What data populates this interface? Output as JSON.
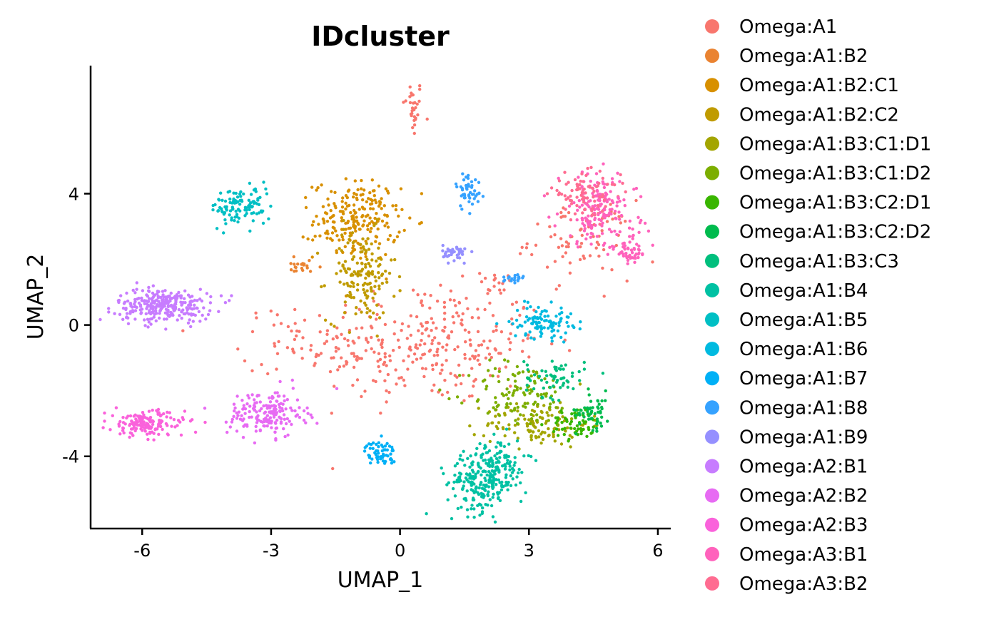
{
  "chart_data": {
    "type": "scatter",
    "title": "IDcluster",
    "xlabel": "UMAP_1",
    "ylabel": "UMAP_2",
    "xlim": [
      -7.2,
      6.3
    ],
    "ylim": [
      -6.2,
      7.9
    ],
    "x_ticks": [
      -6,
      -3,
      0,
      3,
      6
    ],
    "x_tick_labels": [
      "-6",
      "-3",
      "0",
      "3",
      "6"
    ],
    "y_ticks": [
      -4,
      0,
      4
    ],
    "y_tick_labels": [
      "-4",
      "0",
      "4"
    ],
    "grid": false,
    "legend_position": "right",
    "series": [
      {
        "name": "Omega:A1",
        "color": "#F8766D",
        "clusters": [
          {
            "cx": 0.3,
            "cy": 6.6,
            "sx": 0.12,
            "sy": 0.45,
            "n": 30
          },
          {
            "cx": 0.6,
            "cy": -0.6,
            "sx": 1.4,
            "sy": 0.9,
            "n": 300
          },
          {
            "cx": -2.3,
            "cy": -0.5,
            "sx": 0.7,
            "sy": 0.5,
            "n": 40
          },
          {
            "cx": 4.2,
            "cy": 2.6,
            "sx": 0.6,
            "sy": 0.6,
            "n": 80
          },
          {
            "cx": 2.3,
            "cy": 1.2,
            "sx": 0.25,
            "sy": 0.15,
            "n": 15
          }
        ]
      },
      {
        "name": "Omega:A1:B2",
        "color": "#EA8331",
        "clusters": [
          {
            "cx": -2.3,
            "cy": 1.8,
            "sx": 0.25,
            "sy": 0.15,
            "n": 20
          }
        ]
      },
      {
        "name": "Omega:A1:B2:C1",
        "color": "#D89000",
        "clusters": [
          {
            "cx": -1.0,
            "cy": 3.2,
            "sx": 0.5,
            "sy": 0.6,
            "n": 220
          }
        ]
      },
      {
        "name": "Omega:A1:B2:C2",
        "color": "#C09B00",
        "clusters": [
          {
            "cx": -0.9,
            "cy": 1.5,
            "sx": 0.4,
            "sy": 0.7,
            "n": 150
          }
        ]
      },
      {
        "name": "Omega:A1:B3:C1:D1",
        "color": "#A3A500",
        "clusters": [
          {
            "cx": 3.2,
            "cy": -3.0,
            "sx": 0.6,
            "sy": 0.35,
            "n": 120
          }
        ]
      },
      {
        "name": "Omega:A1:B3:C1:D2",
        "color": "#7CAE00",
        "clusters": [
          {
            "cx": 2.8,
            "cy": -2.1,
            "sx": 0.6,
            "sy": 0.5,
            "n": 110
          }
        ]
      },
      {
        "name": "Omega:A1:B3:C2:D1",
        "color": "#39B600",
        "clusters": [
          {
            "cx": 4.1,
            "cy": -3.0,
            "sx": 0.3,
            "sy": 0.25,
            "n": 60
          }
        ]
      },
      {
        "name": "Omega:A1:B3:C2:D2",
        "color": "#00BB4E",
        "clusters": [
          {
            "cx": 4.5,
            "cy": -2.6,
            "sx": 0.2,
            "sy": 0.3,
            "n": 50
          }
        ]
      },
      {
        "name": "Omega:A1:B3:C3",
        "color": "#00BF7D",
        "clusters": [
          {
            "cx": 3.6,
            "cy": -1.6,
            "sx": 0.35,
            "sy": 0.3,
            "n": 60
          }
        ]
      },
      {
        "name": "Omega:A1:B4",
        "color": "#00C1A3",
        "clusters": [
          {
            "cx": 1.9,
            "cy": -4.8,
            "sx": 0.4,
            "sy": 0.45,
            "n": 200
          },
          {
            "cx": 2.3,
            "cy": -4.1,
            "sx": 0.3,
            "sy": 0.35,
            "n": 80
          }
        ]
      },
      {
        "name": "Omega:A1:B5",
        "color": "#00BFC4",
        "clusters": [
          {
            "cx": -3.7,
            "cy": 3.6,
            "sx": 0.35,
            "sy": 0.3,
            "n": 110
          }
        ]
      },
      {
        "name": "Omega:A1:B6",
        "color": "#00BAE0",
        "clusters": [
          {
            "cx": 3.3,
            "cy": 0.1,
            "sx": 0.35,
            "sy": 0.25,
            "n": 100
          }
        ]
      },
      {
        "name": "Omega:A1:B7",
        "color": "#00B0F6",
        "clusters": [
          {
            "cx": -0.45,
            "cy": -3.9,
            "sx": 0.18,
            "sy": 0.18,
            "n": 60
          }
        ]
      },
      {
        "name": "Omega:A1:B8",
        "color": "#35A2FF",
        "clusters": [
          {
            "cx": 1.6,
            "cy": 4.1,
            "sx": 0.15,
            "sy": 0.3,
            "n": 45
          },
          {
            "cx": 2.6,
            "cy": 1.4,
            "sx": 0.15,
            "sy": 0.1,
            "n": 20
          }
        ]
      },
      {
        "name": "Omega:A1:B9",
        "color": "#9590FF",
        "clusters": [
          {
            "cx": 1.3,
            "cy": 2.2,
            "sx": 0.15,
            "sy": 0.12,
            "n": 40
          }
        ]
      },
      {
        "name": "Omega:A2:B1",
        "color": "#C77CFF",
        "clusters": [
          {
            "cx": -5.5,
            "cy": 0.6,
            "sx": 0.55,
            "sy": 0.25,
            "n": 280
          }
        ]
      },
      {
        "name": "Omega:A2:B2",
        "color": "#E76BF3",
        "clusters": [
          {
            "cx": -3.1,
            "cy": -2.7,
            "sx": 0.45,
            "sy": 0.35,
            "n": 180
          }
        ]
      },
      {
        "name": "Omega:A2:B3",
        "color": "#FA62DB",
        "clusters": [
          {
            "cx": -5.9,
            "cy": -3.0,
            "sx": 0.45,
            "sy": 0.2,
            "n": 160
          }
        ]
      },
      {
        "name": "Omega:A3:B1",
        "color": "#FF62BC",
        "clusters": [
          {
            "cx": 4.6,
            "cy": 3.5,
            "sx": 0.45,
            "sy": 0.55,
            "n": 170
          },
          {
            "cx": 5.4,
            "cy": 2.3,
            "sx": 0.2,
            "sy": 0.25,
            "n": 50
          }
        ]
      },
      {
        "name": "Omega:A3:B2",
        "color": "#FF6C91",
        "clusters": [
          {
            "cx": 4.3,
            "cy": 4.0,
            "sx": 0.4,
            "sy": 0.3,
            "n": 80
          }
        ]
      }
    ]
  }
}
